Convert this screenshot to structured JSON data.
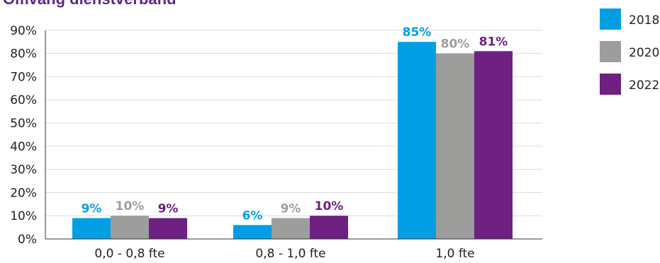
{
  "chart_data": {
    "type": "bar",
    "title": "Omvang dienstverband",
    "categories": [
      "0,0 - 0,8 fte",
      "0,8 - 1,0 fte",
      "1,0 fte"
    ],
    "series": [
      {
        "name": "2018",
        "color": "#009fe3",
        "values": [
          9,
          6,
          85
        ],
        "labels": [
          "9%",
          "6%",
          "85%"
        ]
      },
      {
        "name": "2020",
        "color": "#9d9d9c",
        "values": [
          10,
          9,
          80
        ],
        "labels": [
          "10%",
          "9%",
          "80%"
        ]
      },
      {
        "name": "2022",
        "color": "#6e2182",
        "values": [
          9,
          10,
          81
        ],
        "labels": [
          "9%",
          "10%",
          "81%"
        ]
      }
    ],
    "yticks": [
      "0%",
      "10%",
      "20%",
      "30%",
      "40%",
      "50%",
      "60%",
      "70%",
      "80%",
      "90%"
    ],
    "ylim": [
      0,
      90
    ],
    "grid": true,
    "legend_position": "right"
  }
}
